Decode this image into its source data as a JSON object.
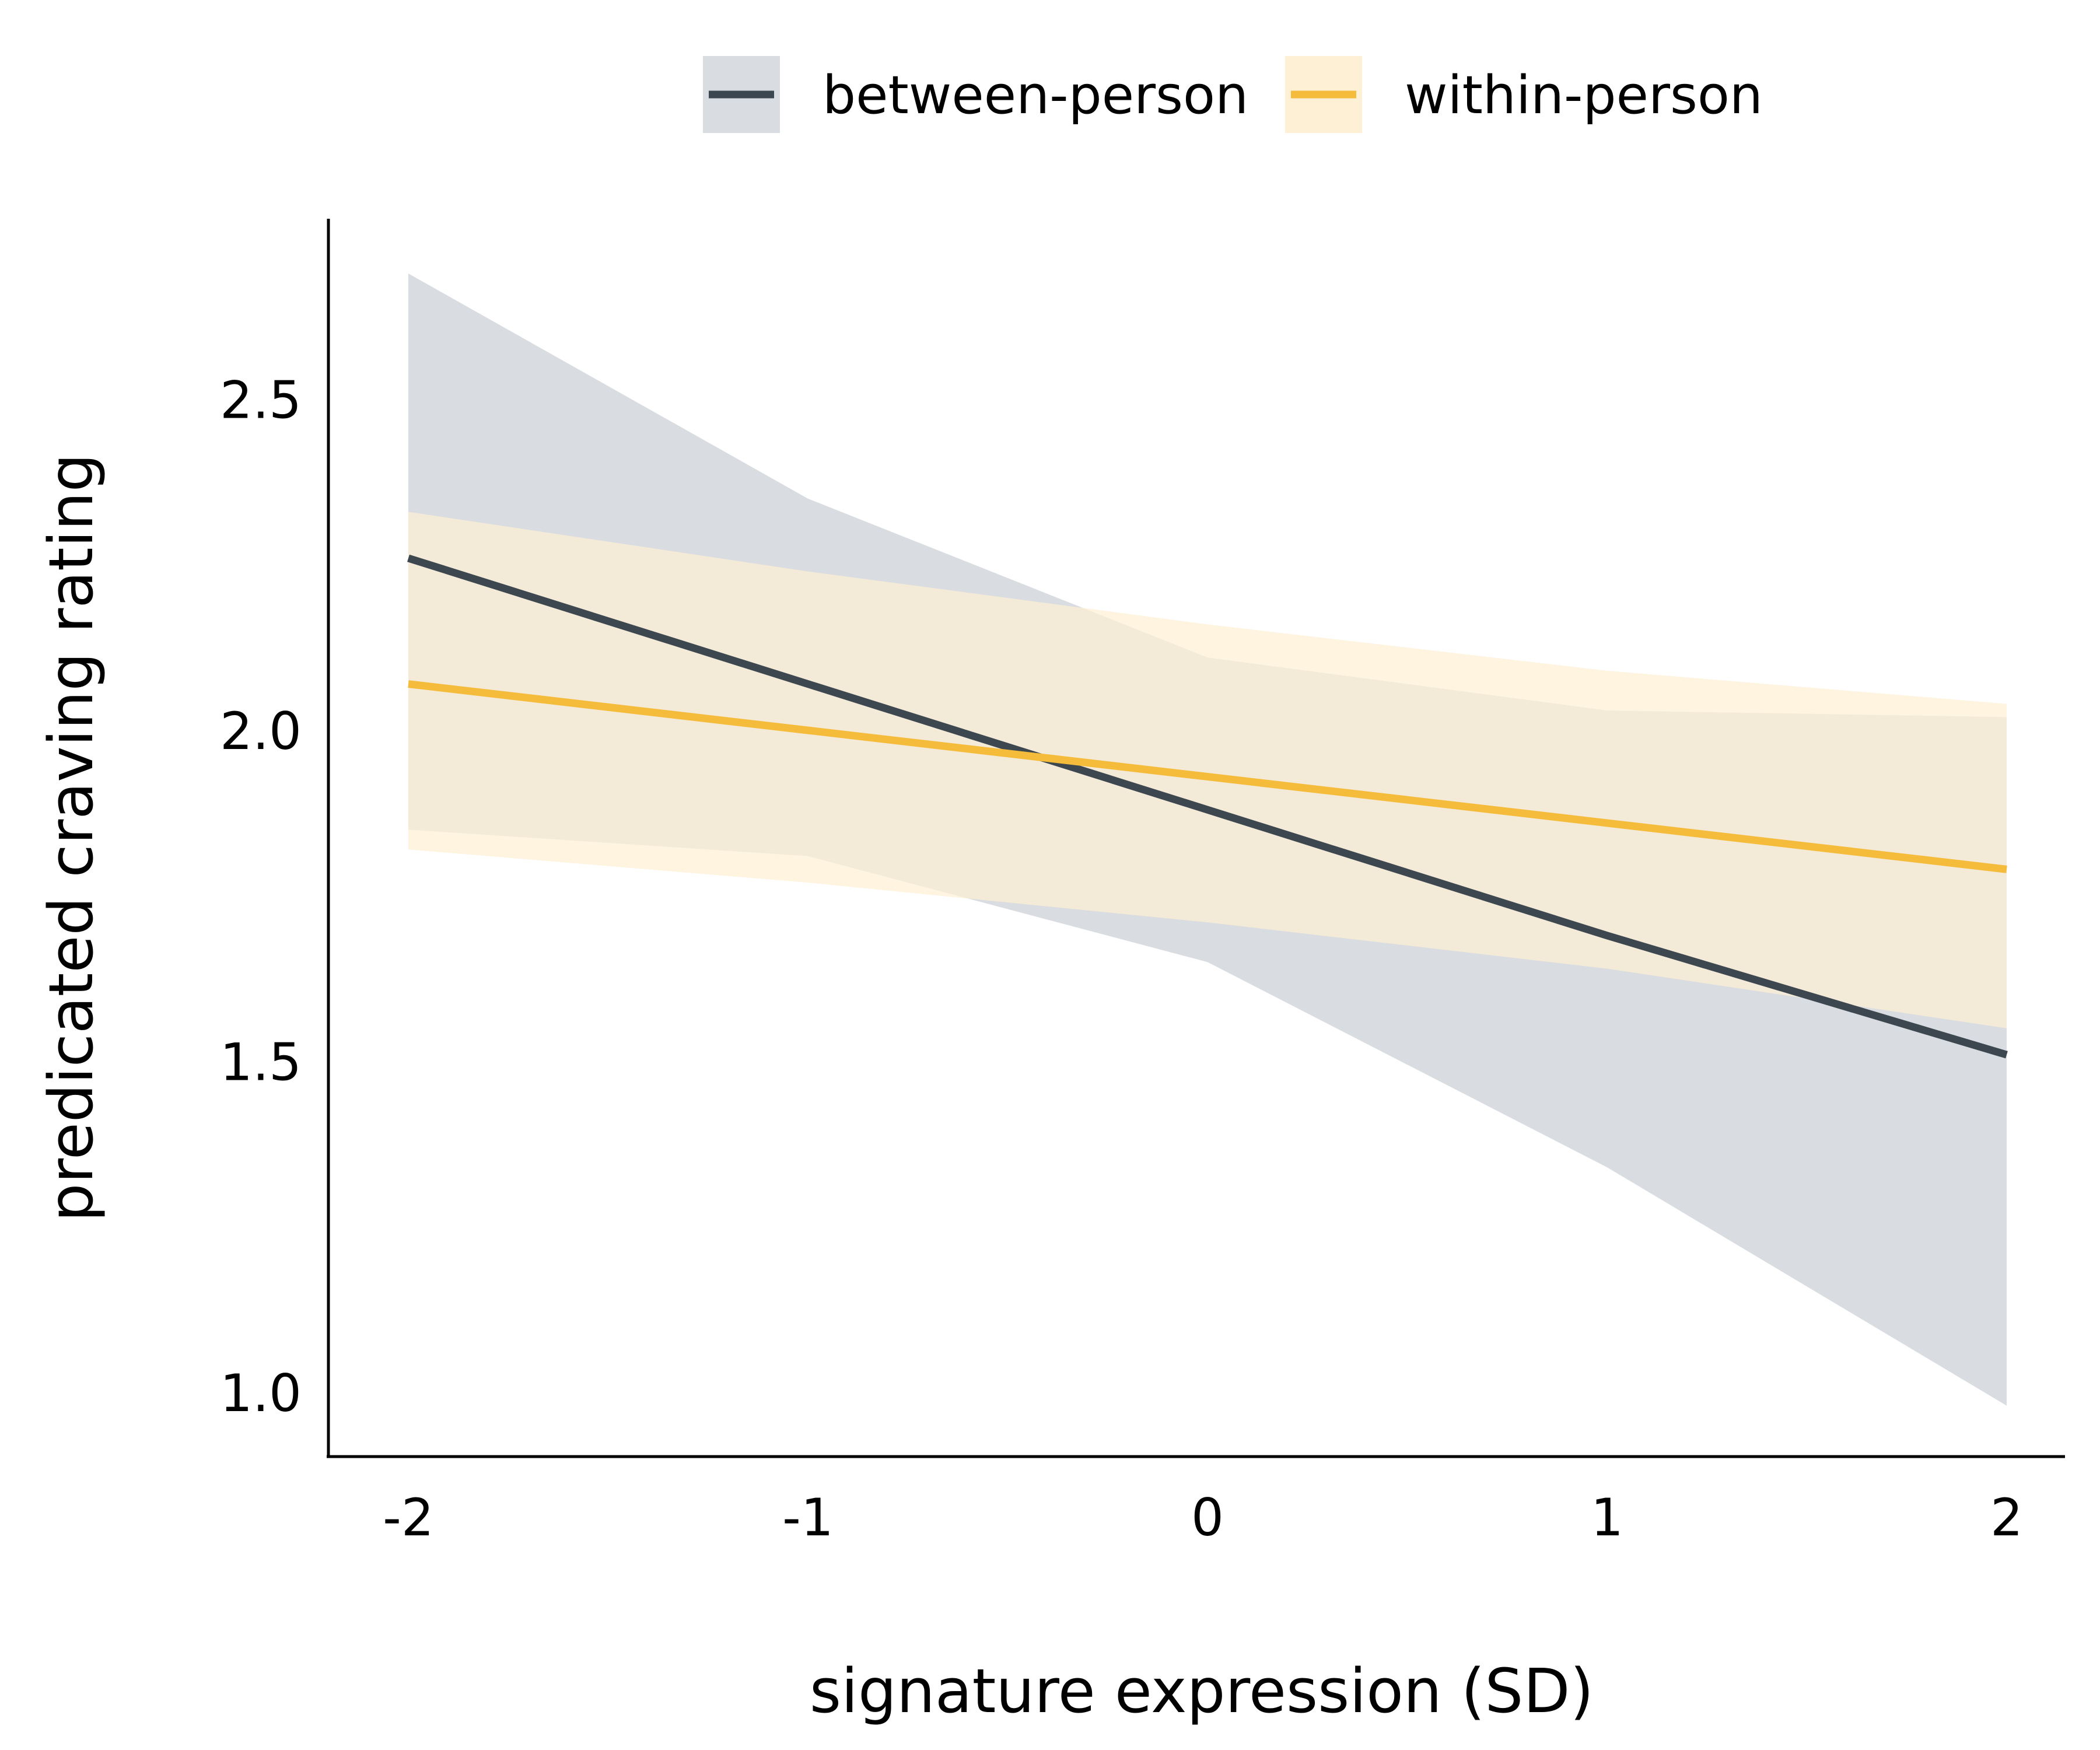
{
  "chart_data": {
    "type": "line",
    "xlabel": "signature expression (SD)",
    "ylabel": "predicated craving rating",
    "x": [
      -2,
      -1,
      0,
      1,
      2
    ],
    "x_tick_labels": [
      "-2",
      "-1",
      "0",
      "1",
      "2"
    ],
    "y_ticks": [
      1.0,
      1.5,
      2.0,
      2.5
    ],
    "y_tick_labels": [
      "1.0",
      "1.5",
      "2.0",
      "2.5"
    ],
    "xlim": [
      -2.2,
      2.15
    ],
    "ylim": [
      0.9,
      2.77
    ],
    "grid": false,
    "legend_position": "top-center",
    "series": [
      {
        "name": "between-person",
        "color": "#3d4750",
        "band_color": "#d9dce0",
        "values": [
          2.26,
          2.07,
          1.88,
          1.69,
          1.51
        ],
        "lower": [
          1.85,
          1.81,
          1.65,
          1.34,
          0.98
        ],
        "upper": [
          2.69,
          2.35,
          2.11,
          2.03,
          2.02
        ]
      },
      {
        "name": "within-person",
        "color": "#f5bb3a",
        "band_color": "#fdf0d4",
        "values": [
          2.07,
          2.0,
          1.93,
          1.86,
          1.79
        ],
        "lower": [
          1.82,
          1.77,
          1.71,
          1.64,
          1.55
        ],
        "upper": [
          2.33,
          2.24,
          2.16,
          2.09,
          2.04
        ]
      }
    ]
  }
}
